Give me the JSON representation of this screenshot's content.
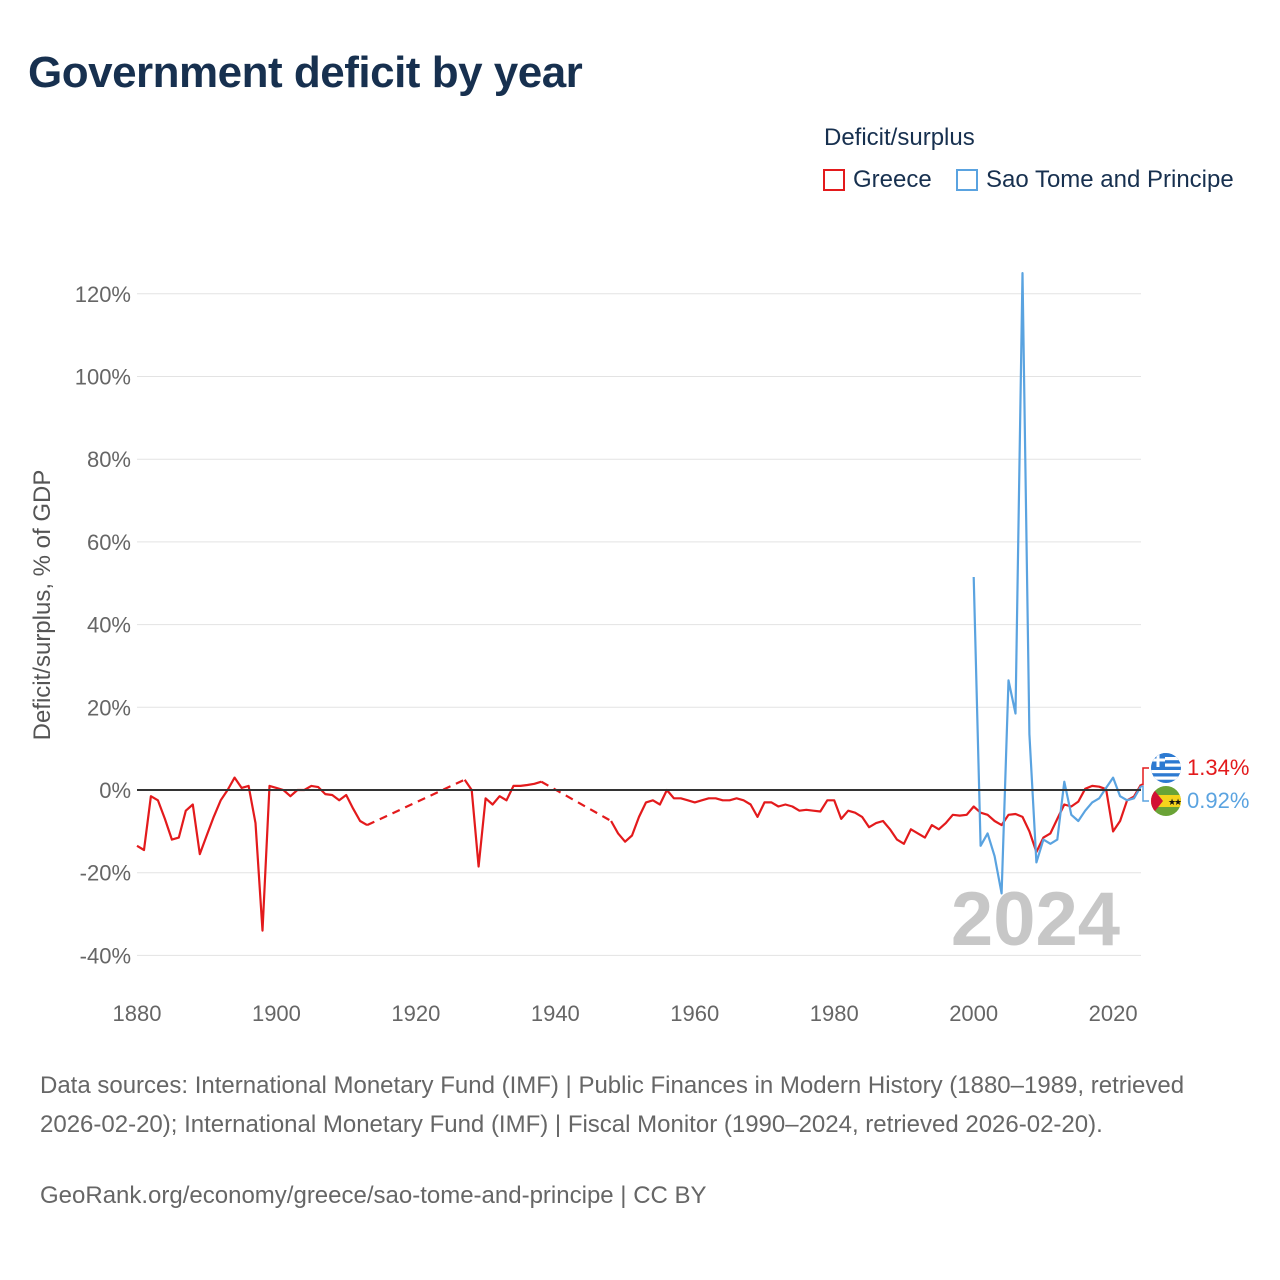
{
  "title": "Government deficit by year",
  "legend": {
    "title": "Deficit/surplus",
    "items": [
      {
        "label": "Greece",
        "color": "#e31a1c"
      },
      {
        "label": "Sao Tome and Principe",
        "color": "#5aa3e0"
      }
    ]
  },
  "footer": {
    "sources": "Data sources: International Monetary Fund (IMF) | Public Finances in Modern History (1880–1989, retrieved 2026-02-20); International Monetary Fund (IMF) | Fiscal Monitor (1990–2024, retrieved 2026-02-20).",
    "attribution": "GeoRank.org/economy/greece/sao-tome-and-principe | CC BY"
  },
  "chart_data": {
    "type": "line",
    "title": "Government deficit by year",
    "xlabel": "",
    "ylabel": "Deficit/surplus, % of GDP",
    "xlim": [
      1880,
      2024
    ],
    "ylim": [
      -40,
      120
    ],
    "x_ticks": [
      1880,
      1900,
      1920,
      1940,
      1960,
      1980,
      2000,
      2020
    ],
    "y_ticks": [
      -40,
      -20,
      0,
      20,
      40,
      60,
      80,
      100,
      120
    ],
    "y_tick_labels": [
      "-40%",
      "-20%",
      "0%",
      "20%",
      "40%",
      "60%",
      "80%",
      "100%",
      "120%"
    ],
    "x_tick_labels": [
      "1880",
      "1900",
      "1920",
      "1940",
      "1960",
      "1980",
      "2000",
      "2020"
    ],
    "current_year_label": "2024",
    "grid": true,
    "legend_position": "top-right",
    "series": [
      {
        "name": "Greece",
        "color": "#e31a1c",
        "end_label": "1.34%",
        "flag": "greece-flag",
        "gaps": [
          [
            1913,
            1927
          ],
          [
            1938,
            1948
          ]
        ],
        "points": [
          [
            1880,
            -13.5
          ],
          [
            1881,
            -14.5
          ],
          [
            1882,
            -1.5
          ],
          [
            1883,
            -2.5
          ],
          [
            1884,
            -7
          ],
          [
            1885,
            -12
          ],
          [
            1886,
            -11.5
          ],
          [
            1887,
            -5
          ],
          [
            1888,
            -3.5
          ],
          [
            1889,
            -15.5
          ],
          [
            1890,
            -11
          ],
          [
            1891,
            -6.5
          ],
          [
            1892,
            -2.5
          ],
          [
            1893,
            0
          ],
          [
            1894,
            3
          ],
          [
            1895,
            0.5
          ],
          [
            1896,
            1
          ],
          [
            1897,
            -8
          ],
          [
            1898,
            -34
          ],
          [
            1899,
            1
          ],
          [
            1900,
            0.5
          ],
          [
            1901,
            0
          ],
          [
            1902,
            -1.5
          ],
          [
            1903,
            0
          ],
          [
            1904,
            0
          ],
          [
            1905,
            1
          ],
          [
            1906,
            0.7
          ],
          [
            1907,
            -1
          ],
          [
            1908,
            -1.2
          ],
          [
            1909,
            -2.5
          ],
          [
            1910,
            -1.2
          ],
          [
            1911,
            -4.5
          ],
          [
            1912,
            -7.5
          ],
          [
            1913,
            -8.5
          ],
          [
            1927,
            2.5
          ],
          [
            1928,
            0
          ],
          [
            1929,
            -18.5
          ],
          [
            1930,
            -2
          ],
          [
            1931,
            -3.5
          ],
          [
            1932,
            -1.5
          ],
          [
            1933,
            -2.5
          ],
          [
            1934,
            1
          ],
          [
            1935,
            1
          ],
          [
            1936,
            1.2
          ],
          [
            1937,
            1.5
          ],
          [
            1938,
            2
          ],
          [
            1948,
            -7.5
          ],
          [
            1949,
            -10.5
          ],
          [
            1950,
            -12.5
          ],
          [
            1951,
            -11
          ],
          [
            1952,
            -6.5
          ],
          [
            1953,
            -3
          ],
          [
            1954,
            -2.5
          ],
          [
            1955,
            -3.5
          ],
          [
            1956,
            0
          ],
          [
            1957,
            -2
          ],
          [
            1958,
            -2
          ],
          [
            1959,
            -2.5
          ],
          [
            1960,
            -3
          ],
          [
            1961,
            -2.5
          ],
          [
            1962,
            -2
          ],
          [
            1963,
            -2
          ],
          [
            1964,
            -2.5
          ],
          [
            1965,
            -2.5
          ],
          [
            1966,
            -2
          ],
          [
            1967,
            -2.5
          ],
          [
            1968,
            -3.5
          ],
          [
            1969,
            -6.5
          ],
          [
            1970,
            -3
          ],
          [
            1971,
            -3
          ],
          [
            1972,
            -4
          ],
          [
            1973,
            -3.5
          ],
          [
            1974,
            -4
          ],
          [
            1975,
            -5
          ],
          [
            1976,
            -4.8
          ],
          [
            1977,
            -5
          ],
          [
            1978,
            -5.2
          ],
          [
            1979,
            -2.5
          ],
          [
            1980,
            -2.5
          ],
          [
            1981,
            -7
          ],
          [
            1982,
            -5
          ],
          [
            1983,
            -5.5
          ],
          [
            1984,
            -6.5
          ],
          [
            1985,
            -9
          ],
          [
            1986,
            -8
          ],
          [
            1987,
            -7.5
          ],
          [
            1988,
            -9.5
          ],
          [
            1989,
            -12
          ],
          [
            1990,
            -13
          ],
          [
            1991,
            -9.5
          ],
          [
            1992,
            -10.5
          ],
          [
            1993,
            -11.5
          ],
          [
            1994,
            -8.5
          ],
          [
            1995,
            -9.5
          ],
          [
            1996,
            -8
          ],
          [
            1997,
            -6
          ],
          [
            1998,
            -6.2
          ],
          [
            1999,
            -6
          ],
          [
            2000,
            -4
          ],
          [
            2001,
            -5.5
          ],
          [
            2002,
            -6
          ],
          [
            2003,
            -7.5
          ],
          [
            2004,
            -8.5
          ],
          [
            2005,
            -6
          ],
          [
            2006,
            -5.8
          ],
          [
            2007,
            -6.5
          ],
          [
            2008,
            -10
          ],
          [
            2009,
            -15
          ],
          [
            2010,
            -11.5
          ],
          [
            2011,
            -10.5
          ],
          [
            2012,
            -7
          ],
          [
            2013,
            -3.5
          ],
          [
            2014,
            -4
          ],
          [
            2015,
            -2.8
          ],
          [
            2016,
            0.3
          ],
          [
            2017,
            1
          ],
          [
            2018,
            0.8
          ],
          [
            2019,
            0.2
          ],
          [
            2020,
            -10
          ],
          [
            2021,
            -7.5
          ],
          [
            2022,
            -2.5
          ],
          [
            2023,
            -1.6
          ],
          [
            2024,
            1.34
          ]
        ]
      },
      {
        "name": "Sao Tome and Principe",
        "color": "#5aa3e0",
        "end_label": "0.92%",
        "flag": "sao-tome-and-principe-flag",
        "gaps": [],
        "points": [
          [
            2000,
            51.5
          ],
          [
            2001,
            -13.5
          ],
          [
            2002,
            -10.5
          ],
          [
            2003,
            -16
          ],
          [
            2004,
            -25
          ],
          [
            2005,
            26.5
          ],
          [
            2006,
            18.5
          ],
          [
            2007,
            125
          ],
          [
            2008,
            13.5
          ],
          [
            2009,
            -17.5
          ],
          [
            2010,
            -12
          ],
          [
            2011,
            -13
          ],
          [
            2012,
            -12
          ],
          [
            2013,
            2
          ],
          [
            2014,
            -6
          ],
          [
            2015,
            -7.5
          ],
          [
            2016,
            -5
          ],
          [
            2017,
            -3
          ],
          [
            2018,
            -2
          ],
          [
            2019,
            0.5
          ],
          [
            2020,
            3
          ],
          [
            2021,
            -1.5
          ],
          [
            2022,
            -2.5
          ],
          [
            2023,
            -2
          ],
          [
            2024,
            0.92
          ]
        ]
      }
    ]
  }
}
